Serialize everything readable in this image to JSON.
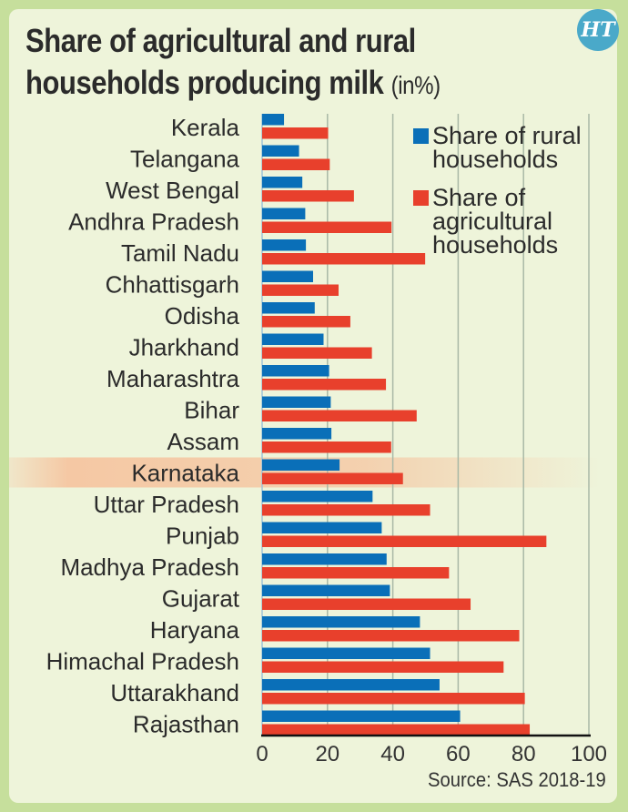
{
  "title": {
    "line1": "Share of agricultural and rural",
    "line2": "households producing milk",
    "unit": "(in%)"
  },
  "logo": "HT",
  "source": "Source: SAS 2018-19",
  "colors": {
    "rural": "#0a6fb8",
    "agricultural": "#e8402c",
    "highlight": "#f5c8a4",
    "background": "#eef4da",
    "border": "#c6df9c"
  },
  "chart_data": {
    "type": "bar",
    "orientation": "horizontal",
    "title": "Share of agricultural and rural households producing milk (in%)",
    "categories": [
      "Kerala",
      "Telangana",
      "West Bengal",
      "Andhra Pradesh",
      "Tamil Nadu",
      "Chhattisgarh",
      "Odisha",
      "Jharkhand",
      "Maharashtra",
      "Bihar",
      "Assam",
      "Karnataka",
      "Uttar Pradesh",
      "Punjab",
      "Madhya Pradesh",
      "Gujarat",
      "Haryana",
      "Himachal Pradesh",
      "Uttarakhand",
      "Rajasthan"
    ],
    "highlighted_category": "Karnataka",
    "series": [
      {
        "name": "Share of rural households",
        "legend_lines": [
          "Share of rural",
          "households"
        ],
        "color": "#0a6fb8",
        "values": [
          6.7,
          11.3,
          12.3,
          13.2,
          13.4,
          15.6,
          16.1,
          18.8,
          20.5,
          21.0,
          21.2,
          23.7,
          33.8,
          36.6,
          38.1,
          39.1,
          48.3,
          51.4,
          54.3,
          60.6
        ]
      },
      {
        "name": "Share of agricultural households",
        "legend_lines": [
          "Share of",
          "agricultural",
          "households"
        ],
        "color": "#e8402c",
        "values": [
          20.2,
          20.7,
          28.1,
          39.6,
          49.9,
          23.4,
          27.0,
          33.6,
          37.9,
          47.3,
          39.5,
          43.1,
          51.4,
          87.0,
          57.2,
          63.8,
          78.7,
          73.9,
          80.4,
          81.9
        ]
      }
    ],
    "xlim": [
      0,
      100
    ],
    "xticks": [
      0,
      20,
      40,
      60,
      80,
      100
    ],
    "grid": true,
    "legend": "top-right"
  }
}
